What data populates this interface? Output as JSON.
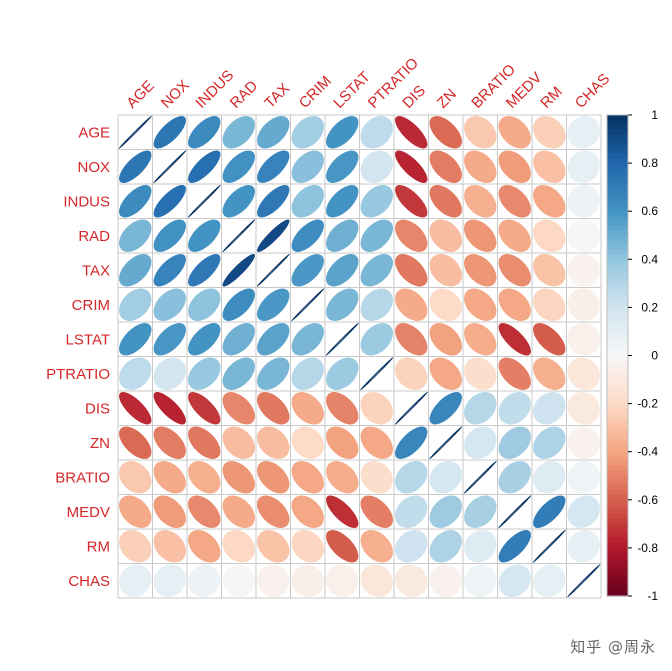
{
  "chart_data": {
    "type": "heatmap",
    "style": "corrplot-ellipse",
    "order": "hclust (upper/left = AGE)",
    "variables": [
      "AGE",
      "NOX",
      "INDUS",
      "RAD",
      "TAX",
      "CRIM",
      "LSTAT",
      "PTRATIO",
      "DIS",
      "ZN",
      "BRATIO",
      "MEDV",
      "RM",
      "CHAS"
    ],
    "matrix": [
      [
        1.0,
        0.73,
        0.64,
        0.46,
        0.51,
        0.35,
        0.6,
        0.26,
        -0.75,
        -0.57,
        -0.27,
        -0.38,
        -0.24,
        0.09
      ],
      [
        0.73,
        1.0,
        0.76,
        0.61,
        0.67,
        0.42,
        0.59,
        0.19,
        -0.77,
        -0.52,
        -0.38,
        -0.43,
        -0.3,
        0.09
      ],
      [
        0.64,
        0.76,
        1.0,
        0.6,
        0.72,
        0.41,
        0.6,
        0.38,
        -0.71,
        -0.53,
        -0.36,
        -0.48,
        -0.39,
        0.06
      ],
      [
        0.46,
        0.61,
        0.6,
        1.0,
        0.91,
        0.63,
        0.49,
        0.46,
        -0.49,
        -0.31,
        -0.44,
        -0.38,
        -0.21,
        -0.01
      ],
      [
        0.51,
        0.67,
        0.72,
        0.91,
        1.0,
        0.58,
        0.54,
        0.46,
        -0.53,
        -0.31,
        -0.44,
        -0.47,
        -0.29,
        -0.04
      ],
      [
        0.35,
        0.42,
        0.41,
        0.63,
        0.58,
        1.0,
        0.46,
        0.29,
        -0.38,
        -0.2,
        -0.39,
        -0.39,
        -0.22,
        -0.06
      ],
      [
        0.6,
        0.59,
        0.6,
        0.49,
        0.54,
        0.46,
        1.0,
        0.37,
        -0.5,
        -0.41,
        -0.37,
        -0.74,
        -0.61,
        -0.05
      ],
      [
        0.26,
        0.19,
        0.38,
        0.46,
        0.46,
        0.29,
        0.37,
        1.0,
        -0.23,
        -0.39,
        -0.18,
        -0.51,
        -0.36,
        -0.12
      ],
      [
        -0.75,
        -0.77,
        -0.71,
        -0.49,
        -0.53,
        -0.38,
        -0.5,
        -0.23,
        1.0,
        0.66,
        0.29,
        0.25,
        0.21,
        -0.1
      ],
      [
        -0.57,
        -0.52,
        -0.53,
        -0.31,
        -0.31,
        -0.2,
        -0.41,
        -0.39,
        0.66,
        1.0,
        0.18,
        0.36,
        0.31,
        -0.04
      ],
      [
        -0.27,
        -0.38,
        -0.36,
        -0.44,
        -0.44,
        -0.39,
        -0.37,
        -0.18,
        0.29,
        0.18,
        1.0,
        0.33,
        0.13,
        0.05
      ],
      [
        -0.38,
        -0.43,
        -0.48,
        -0.38,
        -0.47,
        -0.39,
        -0.74,
        -0.51,
        0.25,
        0.36,
        0.33,
        1.0,
        0.7,
        0.18
      ],
      [
        -0.24,
        -0.3,
        -0.39,
        -0.21,
        -0.29,
        -0.22,
        -0.61,
        -0.36,
        0.21,
        0.31,
        0.13,
        0.7,
        1.0,
        0.09
      ],
      [
        0.09,
        0.09,
        0.06,
        -0.01,
        -0.04,
        -0.06,
        -0.05,
        -0.12,
        -0.1,
        -0.04,
        0.05,
        0.18,
        0.09,
        1.0
      ]
    ],
    "colorbar": {
      "range": [
        -1,
        1
      ],
      "ticks": [
        "1",
        "0.8",
        "0.6",
        "0.4",
        "0.2",
        "0",
        "-0.2",
        "-0.4",
        "-0.6",
        "-0.8",
        "-1"
      ],
      "low_color": "#67001F",
      "mid_color": "#F7F7F7",
      "high_color": "#053061"
    },
    "label_color": "#D62728"
  },
  "watermark": "知乎 @周永"
}
